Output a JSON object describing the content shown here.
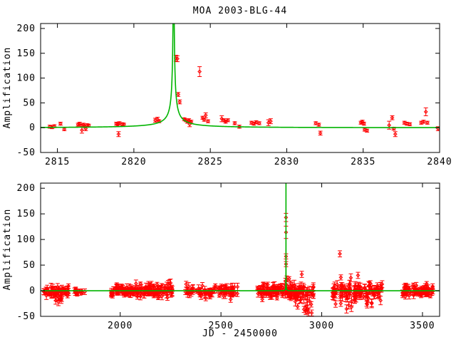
{
  "chart_data": {
    "type": "scatter",
    "title": "MOA 2003-BLG-44",
    "legend": "off",
    "grid": false,
    "colors": {
      "data": "#ff0000",
      "model": "#00b400",
      "frame": "#000000",
      "background": "#ffffff"
    },
    "panels": [
      {
        "id": "event-zoom-panel",
        "ylabel": "Amplification",
        "xlabel": "",
        "xlim": [
          2813.9,
          2840
        ],
        "ylim": [
          -50,
          210
        ],
        "xticks": [
          2815,
          2820,
          2825,
          2830,
          2835,
          2840
        ],
        "yticks": [
          -50,
          0,
          50,
          100,
          150,
          200
        ],
        "model": {
          "kind": "paczynski_microlensing",
          "t0": 2822.6,
          "tE": 11.0,
          "u0": 0.003,
          "baseline": 0
        },
        "points": [
          [
            2814.5,
            2,
            3
          ],
          [
            2814.65,
            1,
            3
          ],
          [
            2814.8,
            3,
            3
          ],
          [
            2815.2,
            8,
            3
          ],
          [
            2815.45,
            -3,
            3
          ],
          [
            2816.35,
            6,
            3
          ],
          [
            2816.45,
            8,
            3
          ],
          [
            2816.55,
            4,
            3
          ],
          [
            2816.6,
            -5,
            6
          ],
          [
            2816.7,
            6,
            3
          ],
          [
            2816.8,
            3,
            3
          ],
          [
            2816.85,
            -2,
            4
          ],
          [
            2816.95,
            5,
            3
          ],
          [
            2817.05,
            4,
            3
          ],
          [
            2818.85,
            8,
            3
          ],
          [
            2818.95,
            6,
            3
          ],
          [
            2819.0,
            -13,
            5
          ],
          [
            2819.05,
            9,
            3
          ],
          [
            2819.25,
            7,
            3
          ],
          [
            2819.35,
            6,
            3
          ],
          [
            2821.4,
            15,
            4
          ],
          [
            2821.55,
            17,
            4
          ],
          [
            2821.65,
            13,
            3
          ],
          [
            2822.75,
            140,
            6
          ],
          [
            2822.85,
            139,
            6
          ],
          [
            2822.9,
            67,
            4
          ],
          [
            2823.0,
            52,
            4
          ],
          [
            2823.3,
            17,
            3
          ],
          [
            2823.4,
            15,
            3
          ],
          [
            2823.5,
            12,
            3
          ],
          [
            2823.6,
            15,
            3
          ],
          [
            2823.65,
            7,
            5
          ],
          [
            2823.75,
            12,
            3
          ],
          [
            2824.3,
            113,
            10
          ],
          [
            2824.5,
            20,
            3
          ],
          [
            2824.6,
            16,
            3
          ],
          [
            2824.7,
            25,
            5
          ],
          [
            2824.85,
            13,
            3
          ],
          [
            2825.75,
            18,
            6
          ],
          [
            2825.9,
            15,
            3
          ],
          [
            2826.0,
            12,
            3
          ],
          [
            2826.15,
            15,
            3
          ],
          [
            2826.6,
            9,
            3
          ],
          [
            2826.9,
            2,
            3
          ],
          [
            2827.7,
            10,
            3
          ],
          [
            2827.85,
            8,
            3
          ],
          [
            2828.0,
            11,
            3
          ],
          [
            2828.2,
            9,
            3
          ],
          [
            2828.8,
            10,
            6
          ],
          [
            2828.95,
            13,
            5
          ],
          [
            2831.9,
            9,
            3
          ],
          [
            2832.1,
            6,
            3
          ],
          [
            2832.2,
            -11,
            4
          ],
          [
            2834.85,
            10,
            3
          ],
          [
            2834.95,
            12,
            3
          ],
          [
            2835.05,
            8,
            3
          ],
          [
            2835.1,
            -4,
            3
          ],
          [
            2835.25,
            -6,
            3
          ],
          [
            2836.7,
            5,
            8
          ],
          [
            2836.9,
            20,
            4
          ],
          [
            2837.0,
            -2,
            3
          ],
          [
            2837.1,
            -13,
            5
          ],
          [
            2837.7,
            10,
            3
          ],
          [
            2837.85,
            8,
            3
          ],
          [
            2838.05,
            7,
            3
          ],
          [
            2838.8,
            10,
            3
          ],
          [
            2838.95,
            12,
            3
          ],
          [
            2839.1,
            32,
            8
          ],
          [
            2839.2,
            10,
            3
          ],
          [
            2839.9,
            -2,
            4
          ]
        ]
      },
      {
        "id": "full-baseline-panel",
        "ylabel": "Amplification",
        "xlabel": "JD - 2450000",
        "xlim": [
          1605,
          3585
        ],
        "ylim": [
          -50,
          210
        ],
        "xticks": [
          2000,
          2500,
          3000,
          3500
        ],
        "yticks": [
          -50,
          0,
          50,
          100,
          150,
          200
        ],
        "model": {
          "kind": "paczynski_microlensing",
          "t0": 2822.6,
          "tE": 11.0,
          "u0": 0.003,
          "baseline": 0
        },
        "points": [
          [
            2822.6,
            143,
            8
          ],
          [
            2822.7,
            114,
            12
          ],
          [
            2822.8,
            67,
            5
          ],
          [
            2822.9,
            52,
            5
          ],
          [
            2901,
            32,
            6
          ],
          [
            3090,
            72,
            6
          ],
          [
            3095,
            26,
            5
          ],
          [
            3180,
            30,
            6
          ]
        ],
        "point_clusters": [
          {
            "x_min": 1615,
            "x_max": 1745,
            "n": 55,
            "y_mean": -2,
            "y_sd": 5,
            "err_min": 3,
            "err_max": 8
          },
          {
            "x_min": 1670,
            "x_max": 1710,
            "n": 8,
            "y_mean": -14,
            "y_sd": 4,
            "err_min": 4,
            "err_max": 8
          },
          {
            "x_min": 1772,
            "x_max": 1825,
            "n": 14,
            "y_mean": 0,
            "y_sd": 4,
            "err_min": 3,
            "err_max": 6
          },
          {
            "x_min": 1955,
            "x_max": 2095,
            "n": 75,
            "y_mean": 0,
            "y_sd": 5,
            "err_min": 3,
            "err_max": 7
          },
          {
            "x_min": 2100,
            "x_max": 2260,
            "n": 85,
            "y_mean": 0,
            "y_sd": 6,
            "err_min": 3,
            "err_max": 8
          },
          {
            "x_min": 2320,
            "x_max": 2585,
            "n": 95,
            "y_mean": 0,
            "y_sd": 6,
            "err_min": 3,
            "err_max": 8
          },
          {
            "x_min": 2680,
            "x_max": 2810,
            "n": 70,
            "y_mean": 0,
            "y_sd": 6,
            "err_min": 3,
            "err_max": 8
          },
          {
            "x_min": 2815,
            "x_max": 2960,
            "n": 80,
            "y_mean": -2,
            "y_sd": 9,
            "err_min": 4,
            "err_max": 10
          },
          {
            "x_min": 2880,
            "x_max": 2955,
            "n": 8,
            "y_mean": -38,
            "y_sd": 6,
            "err_min": 5,
            "err_max": 10
          },
          {
            "x_min": 2820,
            "x_max": 2900,
            "n": 5,
            "y_mean": 22,
            "y_sd": 5,
            "err_min": 4,
            "err_max": 8
          },
          {
            "x_min": 3045,
            "x_max": 3300,
            "n": 110,
            "y_mean": -1,
            "y_sd": 8,
            "err_min": 4,
            "err_max": 9
          },
          {
            "x_min": 3055,
            "x_max": 3270,
            "n": 10,
            "y_mean": -28,
            "y_sd": 5,
            "err_min": 5,
            "err_max": 9
          },
          {
            "x_min": 3400,
            "x_max": 3555,
            "n": 75,
            "y_mean": 0,
            "y_sd": 6,
            "err_min": 3,
            "err_max": 7
          }
        ]
      }
    ]
  }
}
